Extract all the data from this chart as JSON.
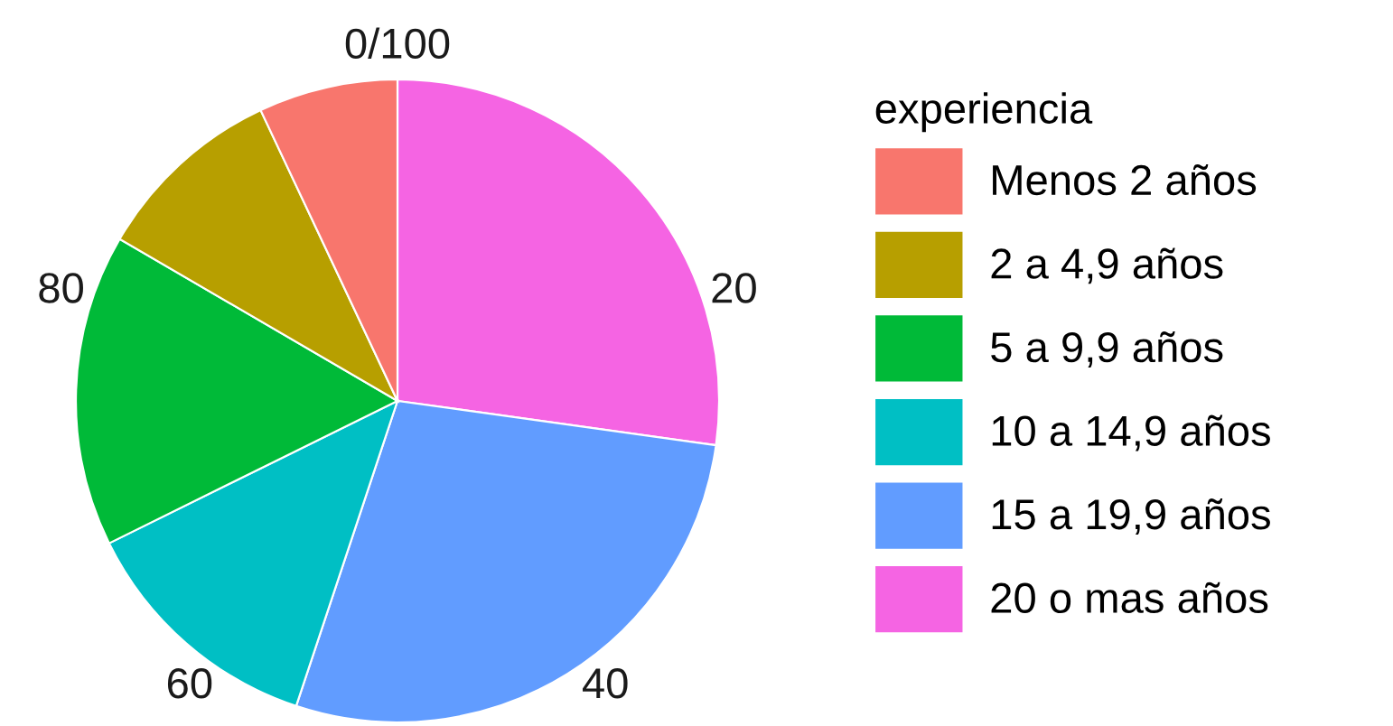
{
  "chart_data": {
    "type": "pie",
    "categories": [
      "Menos 2 años",
      "2 a 4,9 años",
      "5 a 9,9 años",
      "10 a 14,9 años",
      "15 a 19,9 años",
      "20 o mas años"
    ],
    "values": [
      7.0,
      9.6,
      15.7,
      12.6,
      27.9,
      27.2
    ],
    "colors": [
      "#f8766d",
      "#b79f00",
      "#00ba38",
      "#00bfc4",
      "#619cff",
      "#f564e3"
    ],
    "legend_title": "experiencia",
    "legend": "right",
    "annotations": [
      "0/100",
      "20",
      "40",
      "60",
      "80"
    ]
  }
}
